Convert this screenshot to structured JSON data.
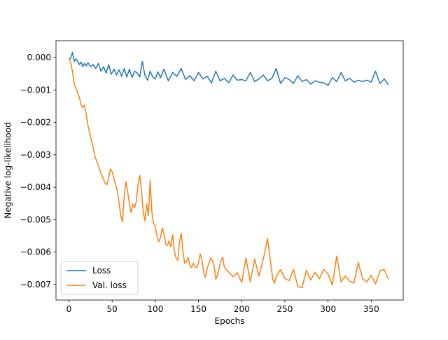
{
  "chart_data": {
    "type": "line",
    "title": "",
    "xlabel": "Epochs",
    "ylabel": "Negative log-likelihood",
    "xlim": [
      -15,
      387
    ],
    "ylim": [
      -0.00748,
      0.00052
    ],
    "xticks": [
      0,
      50,
      100,
      150,
      200,
      250,
      300,
      350
    ],
    "xtick_labels": [
      "0",
      "50",
      "100",
      "150",
      "200",
      "250",
      "300",
      "350"
    ],
    "yticks": [
      0.0,
      -0.001,
      -0.002,
      -0.003,
      -0.004,
      -0.005,
      -0.006,
      -0.007
    ],
    "ytick_labels": [
      "0.000",
      "−0.001",
      "−0.002",
      "−0.003",
      "−0.004",
      "−0.005",
      "−0.006",
      "−0.007"
    ],
    "grid": false,
    "legend_position": "lower-left",
    "series": [
      {
        "name": "Loss",
        "color": "#1f77b4",
        "x": [
          0,
          2,
          4,
          6,
          8,
          10,
          12,
          14,
          16,
          18,
          20,
          22,
          25,
          28,
          31,
          34,
          37,
          40,
          43,
          46,
          49,
          52,
          55,
          58,
          61,
          64,
          67,
          70,
          73,
          76,
          79,
          82,
          85,
          88,
          91,
          94,
          97,
          100,
          103,
          106,
          110,
          115,
          120,
          125,
          130,
          135,
          140,
          145,
          150,
          155,
          160,
          165,
          170,
          175,
          180,
          185,
          190,
          195,
          200,
          205,
          210,
          215,
          220,
          225,
          230,
          235,
          240,
          245,
          250,
          255,
          260,
          265,
          270,
          275,
          280,
          285,
          290,
          295,
          300,
          305,
          310,
          315,
          320,
          325,
          330,
          335,
          340,
          345,
          350,
          355,
          360,
          365,
          370
        ],
        "values": [
          -4e-05,
          -2e-05,
          0.00016,
          -0.00012,
          -4e-05,
          -0.0001,
          -0.00022,
          -0.00014,
          -0.00028,
          -0.00018,
          -0.00026,
          -0.00016,
          -0.00028,
          -0.00022,
          -0.00034,
          -0.00018,
          -0.00042,
          -0.00028,
          -0.00048,
          -0.00022,
          -0.00052,
          -0.00036,
          -0.00054,
          -0.00038,
          -0.00058,
          -0.00034,
          -0.0006,
          -0.00036,
          -0.00062,
          -0.00042,
          -0.00048,
          -0.0006,
          -0.00012,
          -0.00056,
          -0.0007,
          -0.00042,
          -0.0006,
          -0.00066,
          -0.00044,
          -0.00062,
          -0.00036,
          -0.00072,
          -0.00046,
          -0.00058,
          -0.00034,
          -0.00068,
          -0.00056,
          -0.00072,
          -0.00046,
          -0.00066,
          -0.00058,
          -0.00078,
          -0.00042,
          -0.00072,
          -0.00064,
          -0.00078,
          -0.00054,
          -0.0007,
          -0.00068,
          -0.00072,
          -0.00046,
          -0.00074,
          -0.00066,
          -0.00054,
          -0.00072,
          -0.00064,
          -0.00034,
          -0.0008,
          -0.00062,
          -0.00068,
          -0.0008,
          -0.00056,
          -0.00074,
          -0.00068,
          -0.00082,
          -0.00072,
          -0.00076,
          -0.00078,
          -0.00086,
          -0.00062,
          -0.00074,
          -0.00046,
          -0.00072,
          -0.00064,
          -0.00076,
          -0.0007,
          -0.00074,
          -0.0007,
          -0.00076,
          -0.00042,
          -0.0008,
          -0.00066,
          -0.00084
        ]
      },
      {
        "name": "Val. loss",
        "color": "#ff7f0e",
        "x": [
          0,
          2,
          4,
          6,
          8,
          10,
          12,
          14,
          16,
          18,
          20,
          22,
          24,
          26,
          28,
          30,
          32,
          34,
          36,
          38,
          40,
          42,
          44,
          46,
          48,
          50,
          52,
          54,
          56,
          58,
          60,
          62,
          64,
          66,
          68,
          70,
          72,
          74,
          76,
          78,
          80,
          82,
          84,
          86,
          88,
          90,
          92,
          94,
          96,
          98,
          100,
          102,
          104,
          106,
          108,
          110,
          112,
          114,
          116,
          118,
          120,
          122,
          124,
          126,
          128,
          130,
          132,
          134,
          136,
          138,
          140,
          142,
          144,
          146,
          148,
          150,
          152,
          154,
          156,
          158,
          160,
          162,
          164,
          166,
          168,
          170,
          172,
          174,
          176,
          178,
          180,
          185,
          190,
          195,
          200,
          205,
          210,
          215,
          220,
          225,
          230,
          232,
          234,
          236,
          238,
          240,
          245,
          250,
          255,
          260,
          265,
          270,
          275,
          280,
          285,
          290,
          295,
          300,
          305,
          310,
          315,
          320,
          325,
          330,
          335,
          340,
          345,
          350,
          355,
          360,
          365,
          370
        ],
        "values": [
          -4e-05,
          -0.00014,
          -0.00042,
          -0.0008,
          -0.00094,
          -0.0011,
          -0.00122,
          -0.00146,
          -0.00154,
          -0.00148,
          -0.00176,
          -0.0021,
          -0.00232,
          -0.00256,
          -0.00276,
          -0.00304,
          -0.00318,
          -0.00332,
          -0.00348,
          -0.00362,
          -0.00376,
          -0.00388,
          -0.00392,
          -0.0037,
          -0.00344,
          -0.00352,
          -0.00374,
          -0.00392,
          -0.00412,
          -0.00448,
          -0.00488,
          -0.00506,
          -0.00426,
          -0.00382,
          -0.00414,
          -0.00452,
          -0.00478,
          -0.00452,
          -0.00464,
          -0.00444,
          -0.00392,
          -0.00364,
          -0.00408,
          -0.00476,
          -0.00504,
          -0.00452,
          -0.00488,
          -0.0038,
          -0.00478,
          -0.00512,
          -0.0052,
          -0.00552,
          -0.00568,
          -0.00556,
          -0.00526,
          -0.00542,
          -0.00576,
          -0.0058,
          -0.00566,
          -0.00584,
          -0.00546,
          -0.00596,
          -0.00618,
          -0.00626,
          -0.0057,
          -0.00542,
          -0.00598,
          -0.00634,
          -0.0063,
          -0.00616,
          -0.00642,
          -0.00648,
          -0.00634,
          -0.00646,
          -0.00648,
          -0.00634,
          -0.00606,
          -0.00624,
          -0.00664,
          -0.00678,
          -0.00652,
          -0.00634,
          -0.00618,
          -0.00626,
          -0.00642,
          -0.00684,
          -0.00672,
          -0.00648,
          -0.00626,
          -0.00616,
          -0.00648,
          -0.00662,
          -0.00676,
          -0.00664,
          -0.00694,
          -0.00618,
          -0.00692,
          -0.00622,
          -0.00674,
          -0.00622,
          -0.00558,
          -0.00604,
          -0.00642,
          -0.00684,
          -0.00696,
          -0.00676,
          -0.00654,
          -0.00682,
          -0.00688,
          -0.00654,
          -0.00706,
          -0.0071,
          -0.00656,
          -0.00686,
          -0.00662,
          -0.00682,
          -0.00654,
          -0.00668,
          -0.00702,
          -0.00612,
          -0.00692,
          -0.00674,
          -0.0069,
          -0.00696,
          -0.00632,
          -0.00682,
          -0.00692,
          -0.00672,
          -0.00698,
          -0.00658,
          -0.00654,
          -0.00684
        ]
      }
    ]
  }
}
